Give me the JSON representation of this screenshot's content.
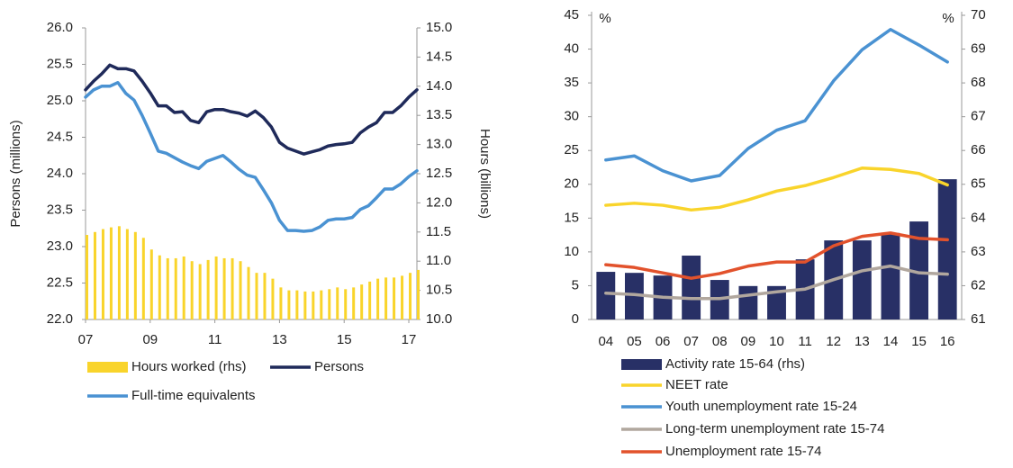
{
  "chart_data": [
    {
      "type": "combo",
      "y_label": "Persons (millions)",
      "y2_label": "Hours (billions)",
      "x": [
        2007,
        2007.25,
        2007.5,
        2007.75,
        2008,
        2008.25,
        2008.5,
        2008.75,
        2009,
        2009.25,
        2009.5,
        2009.75,
        2010,
        2010.25,
        2010.5,
        2010.75,
        2011,
        2011.25,
        2011.5,
        2011.75,
        2012,
        2012.25,
        2012.5,
        2012.75,
        2013,
        2013.25,
        2013.5,
        2013.75,
        2014,
        2014.25,
        2014.5,
        2014.75,
        2015,
        2015.25,
        2015.5,
        2015.75,
        2016,
        2016.25,
        2016.5,
        2016.75,
        2017,
        2017.25
      ],
      "xlim": [
        2007,
        2017.25
      ],
      "xticks": [
        {
          "value": 2007,
          "label": "07"
        },
        {
          "value": 2009,
          "label": "09"
        },
        {
          "value": 2011,
          "label": "11"
        },
        {
          "value": 2013,
          "label": "13"
        },
        {
          "value": 2015,
          "label": "15"
        },
        {
          "value": 2017,
          "label": "17"
        }
      ],
      "ylim": [
        22,
        26
      ],
      "yticks": [
        {
          "value": 22,
          "label": "22.0"
        },
        22.5,
        {
          "value": 23,
          "label": "23.0"
        },
        23.5,
        {
          "value": 24,
          "label": "24.0"
        },
        24.5,
        {
          "value": 25,
          "label": "25.0"
        },
        25.5,
        {
          "value": 26,
          "label": "26.0"
        }
      ],
      "y2lim": [
        10,
        15
      ],
      "y2ticks": [
        {
          "value": 10,
          "label": "10.0"
        },
        10.5,
        {
          "value": 11,
          "label": "11.0"
        },
        11.5,
        {
          "value": 12,
          "label": "12.0"
        },
        12.5,
        {
          "value": 13,
          "label": "13.0"
        },
        13.5,
        {
          "value": 14,
          "label": "14.0"
        },
        14.5,
        {
          "value": 15,
          "label": "15.0"
        }
      ],
      "series": [
        {
          "name": "Hours worked (rhs)",
          "type": "bar",
          "axis": "y2",
          "color": "#f9d42b",
          "values": [
            11.45,
            11.5,
            11.55,
            11.58,
            11.6,
            11.55,
            11.5,
            11.4,
            11.2,
            11.1,
            11.05,
            11.05,
            11.08,
            11.0,
            10.95,
            11.02,
            11.08,
            11.05,
            11.05,
            11.0,
            10.9,
            10.8,
            10.8,
            10.7,
            10.55,
            10.5,
            10.5,
            10.48,
            10.48,
            10.5,
            10.52,
            10.55,
            10.52,
            10.55,
            10.6,
            10.65,
            10.7,
            10.72,
            10.72,
            10.75,
            10.8,
            10.85
          ]
        },
        {
          "name": "Persons",
          "type": "line",
          "color": "#1f2a5a",
          "values": [
            25.15,
            25.27,
            25.37,
            25.49,
            25.44,
            25.44,
            25.41,
            25.27,
            25.11,
            24.93,
            24.93,
            24.84,
            24.85,
            24.73,
            24.7,
            24.85,
            24.88,
            24.88,
            24.85,
            24.83,
            24.79,
            24.86,
            24.77,
            24.64,
            24.43,
            24.35,
            24.31,
            24.27,
            24.3,
            24.33,
            24.38,
            24.4,
            24.41,
            24.43,
            24.56,
            24.64,
            24.7,
            24.84,
            24.84,
            24.93,
            25.05,
            25.15
          ]
        },
        {
          "name": "Full-time equivalents",
          "type": "line",
          "color": "#4a92d2",
          "values": [
            25.05,
            25.15,
            25.2,
            25.2,
            25.25,
            25.1,
            25.01,
            24.8,
            24.56,
            24.31,
            24.28,
            24.22,
            24.16,
            24.11,
            24.07,
            24.17,
            24.21,
            24.25,
            24.16,
            24.06,
            23.98,
            23.95,
            23.78,
            23.6,
            23.36,
            23.22,
            23.22,
            23.21,
            23.22,
            23.27,
            23.36,
            23.38,
            23.38,
            23.4,
            23.51,
            23.56,
            23.67,
            23.79,
            23.79,
            23.86,
            23.96,
            24.04
          ]
        }
      ]
    },
    {
      "type": "combo",
      "y_unit": "%",
      "y2_unit": "%",
      "categories": [
        "04",
        "05",
        "06",
        "07",
        "08",
        "09",
        "10",
        "11",
        "12",
        "13",
        "14",
        "15",
        "16"
      ],
      "ylim": [
        0,
        45
      ],
      "yticks": [
        0,
        5,
        10,
        15,
        20,
        25,
        30,
        35,
        40,
        45
      ],
      "y2lim": [
        61,
        70
      ],
      "y2ticks": [
        61,
        62,
        63,
        64,
        65,
        66,
        67,
        68,
        69,
        70
      ],
      "series": [
        {
          "name": "Activity rate 15-64 (rhs)",
          "type": "bar",
          "axis": "y2",
          "color": "#283066",
          "values": [
            62.41,
            62.38,
            62.3,
            62.89,
            62.17,
            61.99,
            61.99,
            62.78,
            63.34,
            63.34,
            63.56,
            63.9,
            65.15
          ]
        },
        {
          "name": "NEET rate",
          "type": "line",
          "color": "#f9d42b",
          "values": [
            16.9,
            17.2,
            16.9,
            16.2,
            16.6,
            17.7,
            19.0,
            19.8,
            21.0,
            22.4,
            22.2,
            21.6,
            19.9
          ]
        },
        {
          "name": "Youth unemployment rate 15-24",
          "type": "line",
          "color": "#4a92d2",
          "values": [
            23.6,
            24.2,
            22.0,
            20.5,
            21.3,
            25.3,
            28.0,
            29.4,
            35.3,
            39.9,
            42.9,
            40.6,
            38.1
          ]
        },
        {
          "name": "Long-term unemployment rate 15-74",
          "type": "line",
          "color": "#b1a79e",
          "values": [
            3.9,
            3.7,
            3.3,
            3.1,
            3.1,
            3.6,
            4.1,
            4.5,
            5.9,
            7.2,
            7.9,
            6.9,
            6.7
          ]
        },
        {
          "name": "Unemployment rate 15-74",
          "type": "line",
          "color": "#e2522c",
          "values": [
            8.1,
            7.7,
            6.9,
            6.1,
            6.8,
            7.9,
            8.5,
            8.5,
            10.9,
            12.3,
            12.8,
            12.0,
            11.8
          ]
        }
      ]
    }
  ]
}
